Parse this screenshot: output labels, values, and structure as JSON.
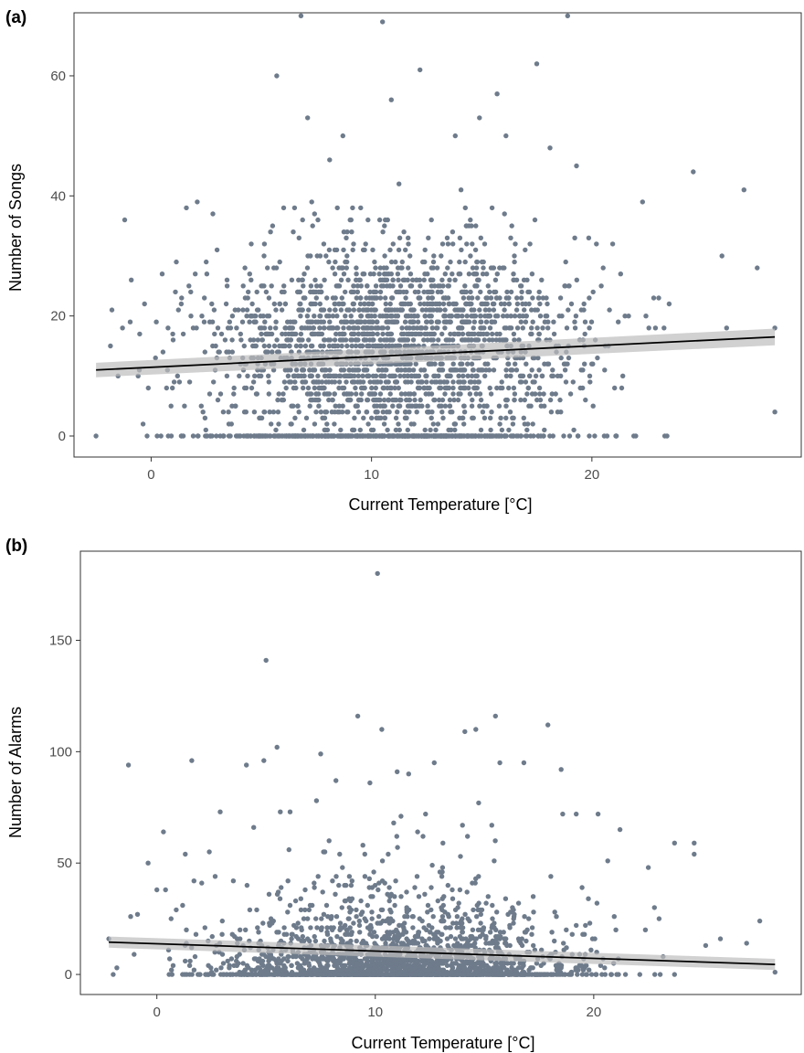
{
  "chart_data": [
    {
      "type": "scatter",
      "panel_label": "(a)",
      "xlabel": "Current Temperature [°C]",
      "ylabel": "Number of Songs",
      "xlim": [
        -3.5,
        29.5
      ],
      "ylim": [
        -3.5,
        70.5
      ],
      "x_ticks": [
        0,
        10,
        20
      ],
      "y_ticks": [
        0,
        20,
        40,
        60
      ],
      "x_tick_labels": [
        "0",
        "10",
        "20"
      ],
      "y_tick_labels": [
        "0",
        "20",
        "40",
        "60"
      ],
      "grid": false,
      "legend": "none",
      "point_color": "#6e7b8b",
      "points_sampled": {
        "x": [
          -2.5,
          -1.5,
          -1.3,
          -1.2,
          -0.9,
          -0.3,
          0.2,
          0.5,
          0.7,
          1.0,
          1.6,
          1.8,
          2.0,
          2.8,
          3.1,
          5.7,
          6.8,
          7.1,
          8.1,
          8.7,
          10.5,
          10.9,
          12.2,
          13.8,
          14.9,
          15.7,
          16.1,
          17.5,
          18.1,
          18.9,
          19.3,
          22.3,
          24.6,
          25.9,
          26.9,
          27.5,
          28.3,
          28.3
        ],
        "y": [
          0,
          10,
          18,
          36,
          26,
          22,
          13,
          27,
          8,
          16,
          38,
          24,
          27,
          37,
          14,
          60,
          70,
          53,
          46,
          50,
          69,
          56,
          61,
          50,
          53,
          57,
          50,
          62,
          48,
          70,
          45,
          39,
          44,
          30,
          41,
          28,
          18,
          4
        ]
      },
      "density_model": {
        "x_range": [
          -2.5,
          28.5
        ],
        "x_mode": 11.0,
        "x_spread": 4.2,
        "y_max": 70,
        "y_mean": 15,
        "n_points": 2600
      },
      "trend_line": {
        "x": [
          -2.5,
          28.3
        ],
        "y": [
          11.0,
          16.5
        ],
        "ci_halfwidth": [
          1.2,
          1.4
        ],
        "color": "#000000",
        "band_color": "#bdbdbd"
      }
    },
    {
      "type": "scatter",
      "panel_label": "(b)",
      "xlabel": "Current Temperature [°C]",
      "ylabel": "Number of Alarms",
      "xlim": [
        -3.5,
        29.5
      ],
      "ylim": [
        -9.0,
        190.0
      ],
      "x_ticks": [
        0,
        10,
        20
      ],
      "y_ticks": [
        0,
        50,
        100,
        150
      ],
      "x_tick_labels": [
        "0",
        "10",
        "20"
      ],
      "y_tick_labels": [
        "0",
        "50",
        "100",
        "150"
      ],
      "grid": false,
      "legend": "none",
      "point_color": "#6e7b8b",
      "points_sampled": {
        "x": [
          -2.2,
          -2.0,
          -1.3,
          -1.2,
          -0.4,
          0.3,
          0.4,
          1.3,
          1.6,
          1.7,
          2.4,
          2.9,
          3.5,
          4.1,
          4.9,
          5.0,
          5.5,
          7.5,
          8.2,
          9.2,
          10.1,
          10.3,
          11.0,
          12.3,
          12.7,
          14.1,
          14.6,
          15.5,
          15.7,
          16.8,
          17.9,
          19.2,
          20.2,
          21.2,
          22.5,
          23.7,
          24.6,
          24.6,
          25.8,
          27.0,
          27.6,
          28.3
        ],
        "y": [
          16,
          0,
          94,
          26,
          50,
          64,
          38,
          54,
          96,
          42,
          55,
          73,
          42,
          94,
          96,
          141,
          102,
          99,
          87,
          116,
          180,
          110,
          91,
          72,
          95,
          109,
          110,
          116,
          95,
          95,
          112,
          72,
          72,
          65,
          48,
          59,
          59,
          54,
          16,
          14,
          24,
          1
        ]
      },
      "density_model": {
        "x_range": [
          -2.2,
          28.5
        ],
        "x_mode": 11.0,
        "x_spread": 4.0,
        "y_max": 180,
        "y_mean": 9,
        "n_points": 2300
      },
      "trend_line": {
        "x": [
          -2.2,
          28.3
        ],
        "y": [
          14.5,
          4.5
        ],
        "ci_halfwidth": [
          2.5,
          2.5
        ],
        "color": "#000000",
        "band_color": "#bdbdbd"
      }
    }
  ]
}
